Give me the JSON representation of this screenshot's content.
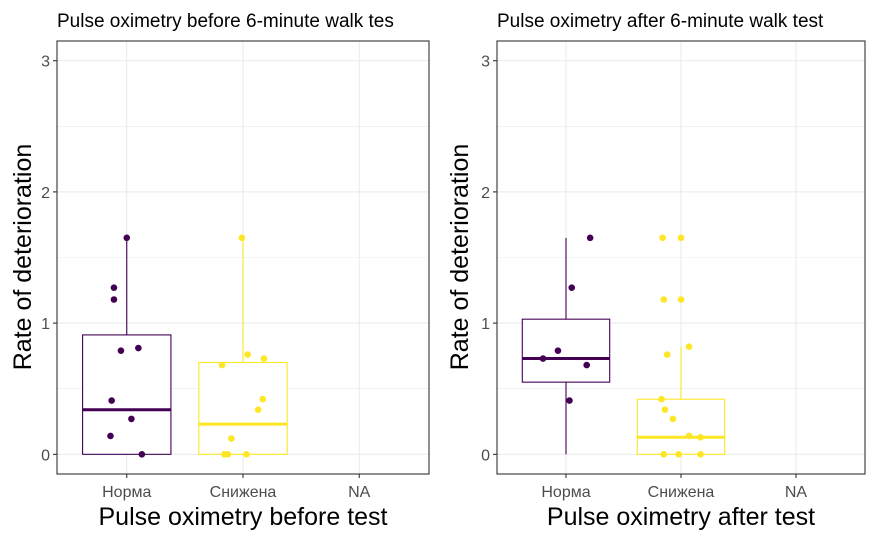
{
  "colors": {
    "Норма": "#440154",
    "Снижена": "#FDE725",
    "grid": "#ebebeb",
    "border": "#333333",
    "tick_text": "#4d4d4d"
  },
  "chart_data": [
    {
      "type": "box",
      "title": "Pulse oximetry before 6-minute walk tes",
      "xlabel": "Pulse oximetry before test",
      "ylabel": "Rate of deterioration",
      "categories": [
        "Норма",
        "Снижена",
        "NA"
      ],
      "ylim": [
        -0.15,
        3.15
      ],
      "yticks": [
        0,
        1,
        2,
        3
      ],
      "grid": true,
      "legend": "none",
      "boxes": [
        {
          "category": "Норма",
          "min": 0,
          "q1": 0,
          "median": 0.34,
          "q3": 0.91,
          "max": 1.65
        },
        {
          "category": "Снижена",
          "min": 0,
          "q1": 0,
          "median": 0.23,
          "q3": 0.7,
          "max": 1.65
        }
      ],
      "points": [
        {
          "category": "Норма",
          "jitter": 0.0,
          "y": 1.65
        },
        {
          "category": "Норма",
          "jitter": -0.11,
          "y": 1.27
        },
        {
          "category": "Норма",
          "jitter": -0.11,
          "y": 1.18
        },
        {
          "category": "Норма",
          "jitter": -0.05,
          "y": 0.79
        },
        {
          "category": "Норма",
          "jitter": 0.1,
          "y": 0.81
        },
        {
          "category": "Норма",
          "jitter": -0.13,
          "y": 0.41
        },
        {
          "category": "Норма",
          "jitter": -0.14,
          "y": 0.14
        },
        {
          "category": "Норма",
          "jitter": 0.04,
          "y": 0.27
        },
        {
          "category": "Норма",
          "jitter": 0.13,
          "y": 0.0
        },
        {
          "category": "Снижена",
          "jitter": -0.01,
          "y": 1.65
        },
        {
          "category": "Снижена",
          "jitter": 0.04,
          "y": 0.76
        },
        {
          "category": "Снижена",
          "jitter": 0.18,
          "y": 0.73
        },
        {
          "category": "Снижена",
          "jitter": -0.18,
          "y": 0.68
        },
        {
          "category": "Снижена",
          "jitter": 0.17,
          "y": 0.42
        },
        {
          "category": "Снижена",
          "jitter": 0.13,
          "y": 0.34
        },
        {
          "category": "Снижена",
          "jitter": -0.1,
          "y": 0.12
        },
        {
          "category": "Снижена",
          "jitter": -0.16,
          "y": 0.0
        },
        {
          "category": "Снижена",
          "jitter": -0.13,
          "y": 0.0
        },
        {
          "category": "Снижена",
          "jitter": 0.03,
          "y": 0.0
        }
      ]
    },
    {
      "type": "box",
      "title": "Pulse oximetry after 6-minute walk test",
      "xlabel": "Pulse oximetry after test",
      "ylabel": "Rate of deterioration",
      "categories": [
        "Норма",
        "Снижена",
        "NA"
      ],
      "ylim": [
        -0.15,
        3.15
      ],
      "yticks": [
        0,
        1,
        2,
        3
      ],
      "grid": true,
      "legend": "none",
      "boxes": [
        {
          "category": "Норма",
          "min": 0,
          "q1": 0.55,
          "median": 0.73,
          "q3": 1.03,
          "max": 1.65
        },
        {
          "category": "Снижена",
          "min": 0,
          "q1": 0,
          "median": 0.13,
          "q3": 0.42,
          "max": 0.82
        }
      ],
      "points": [
        {
          "category": "Норма",
          "jitter": 0.21,
          "y": 1.65
        },
        {
          "category": "Норма",
          "jitter": 0.05,
          "y": 1.27
        },
        {
          "category": "Норма",
          "jitter": -0.07,
          "y": 0.79
        },
        {
          "category": "Норма",
          "jitter": -0.2,
          "y": 0.73
        },
        {
          "category": "Норма",
          "jitter": 0.18,
          "y": 0.68
        },
        {
          "category": "Норма",
          "jitter": 0.03,
          "y": 0.41
        },
        {
          "category": "Снижена",
          "jitter": -0.16,
          "y": 1.65
        },
        {
          "category": "Снижена",
          "jitter": 0.0,
          "y": 1.65
        },
        {
          "category": "Снижена",
          "jitter": -0.15,
          "y": 1.18
        },
        {
          "category": "Снижена",
          "jitter": 0.0,
          "y": 1.18
        },
        {
          "category": "Снижена",
          "jitter": 0.07,
          "y": 0.82
        },
        {
          "category": "Снижена",
          "jitter": -0.12,
          "y": 0.76
        },
        {
          "category": "Снижена",
          "jitter": -0.17,
          "y": 0.42
        },
        {
          "category": "Снижена",
          "jitter": -0.14,
          "y": 0.34
        },
        {
          "category": "Снижена",
          "jitter": -0.07,
          "y": 0.27
        },
        {
          "category": "Снижена",
          "jitter": 0.07,
          "y": 0.14
        },
        {
          "category": "Снижена",
          "jitter": 0.17,
          "y": 0.13
        },
        {
          "category": "Снижена",
          "jitter": -0.15,
          "y": 0.0
        },
        {
          "category": "Снижена",
          "jitter": -0.02,
          "y": 0.0
        },
        {
          "category": "Снижена",
          "jitter": 0.17,
          "y": 0.0
        }
      ]
    }
  ]
}
